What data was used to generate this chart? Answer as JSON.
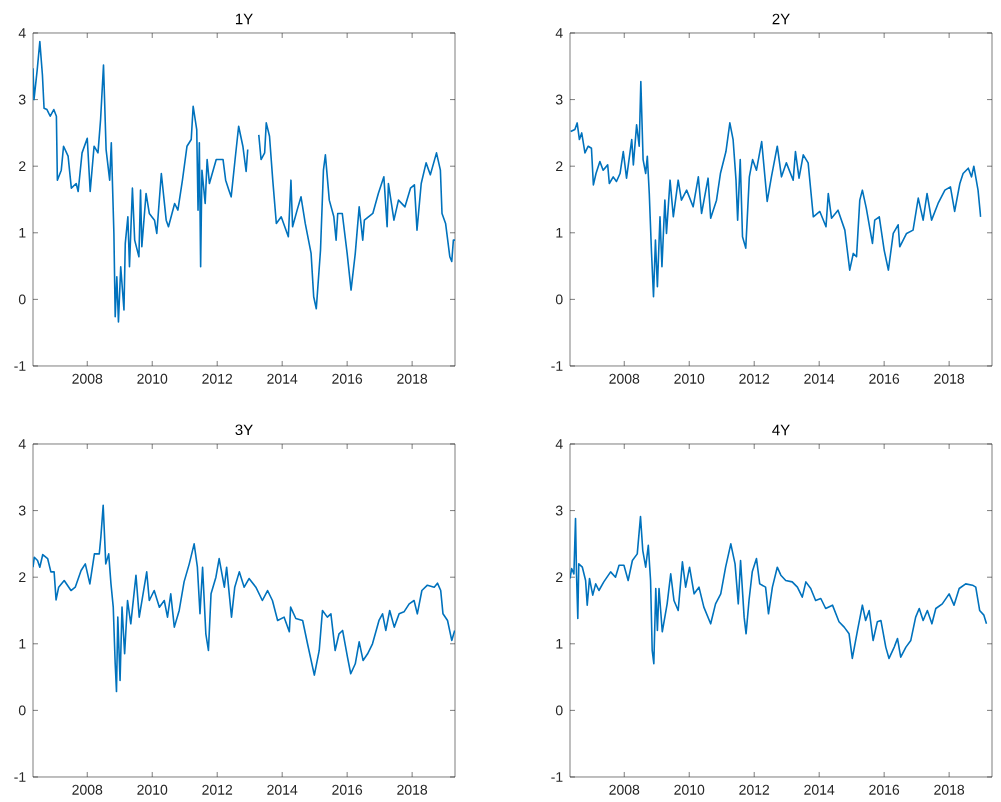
{
  "chart_data": [
    {
      "type": "line",
      "title": "1Y",
      "color": "#0072bd",
      "xlim": [
        2006.33,
        2019.32
      ],
      "ylim": [
        -1,
        4
      ],
      "xticks": [
        2008,
        2010,
        2012,
        2014,
        2016,
        2018
      ],
      "yticks": [
        -1,
        0,
        1,
        2,
        3,
        4
      ],
      "x": [
        2006.33,
        2006.36,
        2006.46,
        2006.54,
        2006.62,
        2006.67,
        2006.76,
        2006.86,
        2006.97,
        2007.05,
        2007.08,
        2007.2,
        2007.27,
        2007.41,
        2007.51,
        2007.66,
        2007.72,
        2007.84,
        2008.0,
        2008.09,
        2008.21,
        2008.33,
        2008.41,
        2008.5,
        2008.58,
        2008.69,
        2008.74,
        2008.82,
        2008.86,
        2008.91,
        2008.96,
        2009.03,
        2009.13,
        2009.17,
        2009.25,
        2009.3,
        2009.39,
        2009.46,
        2009.59,
        2009.64,
        2009.68,
        2009.81,
        2009.91,
        2010.07,
        2010.14,
        2010.28,
        2010.43,
        2010.5,
        2010.69,
        2010.79,
        2010.93,
        2011.07,
        2011.2,
        2011.26,
        2011.37,
        2011.41,
        2011.45,
        2011.49,
        2011.53,
        2011.63,
        2011.69,
        2011.76,
        2011.97,
        2012.18,
        2012.26,
        2012.36,
        2012.43,
        2012.55,
        2012.66,
        2012.79,
        2012.89,
        2012.94,
        2013.1,
        2013.28,
        2013.35,
        2013.46,
        2013.51,
        2013.61,
        2013.71,
        2013.82,
        2013.97,
        2014.19,
        2014.27,
        2014.32,
        2014.46,
        2014.58,
        2014.71,
        2014.89,
        2014.97,
        2015.05,
        2015.18,
        2015.27,
        2015.33,
        2015.45,
        2015.59,
        2015.66,
        2015.71,
        2015.85,
        2016.0,
        2016.12,
        2016.25,
        2016.37,
        2016.48,
        2016.53,
        2016.79,
        2016.96,
        2017.13,
        2017.23,
        2017.27,
        2017.44,
        2017.58,
        2017.78,
        2017.95,
        2018.07,
        2018.15,
        2018.28,
        2018.43,
        2018.56,
        2018.75,
        2018.87,
        2018.92,
        2019.03,
        2019.16,
        2019.22,
        2019.27,
        2019.32
      ],
      "values": [
        3.47,
        3.0,
        3.45,
        3.87,
        3.37,
        2.87,
        2.85,
        2.75,
        2.85,
        2.75,
        1.79,
        1.94,
        2.3,
        2.15,
        1.67,
        1.74,
        1.62,
        2.2,
        2.42,
        1.62,
        2.3,
        2.2,
        2.7,
        3.52,
        2.25,
        1.79,
        2.35,
        0.99,
        -0.26,
        0.34,
        -0.34,
        0.49,
        -0.16,
        0.84,
        1.24,
        0.49,
        1.67,
        0.89,
        0.64,
        1.64,
        0.79,
        1.59,
        1.29,
        1.19,
        0.99,
        1.89,
        1.19,
        1.09,
        1.44,
        1.34,
        1.79,
        2.3,
        2.4,
        2.9,
        2.55,
        1.34,
        2.35,
        0.49,
        1.94,
        1.44,
        2.1,
        1.74,
        2.1,
        2.1,
        1.79,
        1.64,
        1.54,
        2.1,
        2.6,
        2.3,
        1.92,
        2.25,
        null,
        2.47,
        2.1,
        2.2,
        2.65,
        2.45,
        1.79,
        1.14,
        1.24,
        0.94,
        1.79,
        1.09,
        1.34,
        1.54,
        1.14,
        0.69,
        0.04,
        -0.14,
        0.74,
        1.94,
        2.17,
        1.49,
        1.24,
        0.89,
        1.29,
        1.29,
        0.69,
        0.14,
        0.69,
        1.39,
        0.89,
        1.19,
        1.29,
        1.59,
        1.84,
        1.09,
        1.74,
        1.19,
        1.49,
        1.39,
        1.67,
        1.72,
        1.04,
        1.74,
        2.05,
        1.87,
        2.2,
        1.94,
        1.29,
        1.14,
        0.64,
        0.57,
        0.89,
        0.89
      ]
    },
    {
      "type": "line",
      "title": "2Y",
      "color": "#0072bd",
      "xlim": [
        2006.33,
        2019.32
      ],
      "ylim": [
        -1,
        4
      ],
      "xticks": [
        2008,
        2010,
        2012,
        2014,
        2016,
        2018
      ],
      "yticks": [
        -1,
        0,
        1,
        2,
        3,
        4
      ],
      "x": [
        2006.35,
        2006.48,
        2006.55,
        2006.62,
        2006.69,
        2006.79,
        2006.89,
        2006.99,
        2007.05,
        2007.13,
        2007.25,
        2007.35,
        2007.49,
        2007.54,
        2007.66,
        2007.76,
        2007.87,
        2007.97,
        2008.07,
        2008.23,
        2008.28,
        2008.38,
        2008.46,
        2008.51,
        2008.58,
        2008.66,
        2008.71,
        2008.77,
        2008.84,
        2008.9,
        2008.96,
        2009.02,
        2009.1,
        2009.16,
        2009.25,
        2009.3,
        2009.41,
        2009.51,
        2009.66,
        2009.76,
        2009.92,
        2010.12,
        2010.28,
        2010.38,
        2010.58,
        2010.66,
        2010.84,
        2010.96,
        2011.13,
        2011.25,
        2011.35,
        2011.44,
        2011.49,
        2011.57,
        2011.64,
        2011.74,
        2011.85,
        2011.95,
        2012.07,
        2012.23,
        2012.4,
        2012.53,
        2012.71,
        2012.84,
        2012.99,
        2013.2,
        2013.27,
        2013.38,
        2013.51,
        2013.66,
        2013.82,
        2014.02,
        2014.21,
        2014.28,
        2014.38,
        2014.58,
        2014.79,
        2014.94,
        2015.05,
        2015.15,
        2015.25,
        2015.33,
        2015.45,
        2015.64,
        2015.71,
        2015.85,
        2016.0,
        2016.13,
        2016.28,
        2016.43,
        2016.48,
        2016.69,
        2016.89,
        2017.05,
        2017.2,
        2017.32,
        2017.46,
        2017.66,
        2017.87,
        2018.04,
        2018.17,
        2018.33,
        2018.43,
        2018.59,
        2018.69,
        2018.76,
        2018.89,
        2018.97
      ],
      "values": [
        2.52,
        2.55,
        2.65,
        2.4,
        2.5,
        2.2,
        2.3,
        2.27,
        1.72,
        1.89,
        2.07,
        1.94,
        2.02,
        1.74,
        1.84,
        1.77,
        1.89,
        2.22,
        1.82,
        2.4,
        2.02,
        2.62,
        2.3,
        3.27,
        2.1,
        1.89,
        2.15,
        1.59,
        0.69,
        0.04,
        0.89,
        0.19,
        1.24,
        0.49,
        1.49,
        0.99,
        1.79,
        1.24,
        1.79,
        1.49,
        1.64,
        1.39,
        1.84,
        1.29,
        1.82,
        1.22,
        1.49,
        1.89,
        2.22,
        2.65,
        2.4,
        1.79,
        1.19,
        2.1,
        0.94,
        0.77,
        1.84,
        2.1,
        1.94,
        2.37,
        1.47,
        1.84,
        2.3,
        1.84,
        2.05,
        1.79,
        2.22,
        1.82,
        2.17,
        2.05,
        1.24,
        1.32,
        1.09,
        1.59,
        1.22,
        1.34,
        1.04,
        0.44,
        0.69,
        0.64,
        1.49,
        1.64,
        1.37,
        0.84,
        1.19,
        1.24,
        0.74,
        0.44,
        0.99,
        1.12,
        0.79,
        0.99,
        1.04,
        1.52,
        1.19,
        1.59,
        1.19,
        1.44,
        1.64,
        1.69,
        1.32,
        1.74,
        1.89,
        1.97,
        1.84,
        2.0,
        1.64,
        1.24
      ]
    },
    {
      "type": "line",
      "title": "3Y",
      "color": "#0072bd",
      "xlim": [
        2006.33,
        2019.32
      ],
      "ylim": [
        -1,
        4
      ],
      "xticks": [
        2008,
        2010,
        2012,
        2014,
        2016,
        2018
      ],
      "yticks": [
        -1,
        0,
        1,
        2,
        3,
        4
      ],
      "x": [
        2006.33,
        2006.37,
        2006.47,
        2006.54,
        2006.63,
        2006.78,
        2006.88,
        2006.98,
        2007.04,
        2007.12,
        2007.29,
        2007.5,
        2007.63,
        2007.81,
        2007.94,
        2008.08,
        2008.22,
        2008.37,
        2008.42,
        2008.49,
        2008.57,
        2008.66,
        2008.73,
        2008.8,
        2008.86,
        2008.9,
        2008.94,
        2009.01,
        2009.07,
        2009.15,
        2009.24,
        2009.34,
        2009.5,
        2009.6,
        2009.83,
        2009.91,
        2010.06,
        2010.22,
        2010.37,
        2010.47,
        2010.57,
        2010.68,
        2010.83,
        2010.98,
        2011.14,
        2011.29,
        2011.39,
        2011.47,
        2011.55,
        2011.65,
        2011.73,
        2011.81,
        2011.96,
        2012.06,
        2012.22,
        2012.29,
        2012.44,
        2012.54,
        2012.68,
        2012.83,
        2012.98,
        2013.19,
        2013.39,
        2013.55,
        2013.7,
        2013.86,
        2014.06,
        2014.22,
        2014.26,
        2014.42,
        2014.63,
        2014.78,
        2014.99,
        2015.14,
        2015.24,
        2015.39,
        2015.5,
        2015.63,
        2015.75,
        2015.86,
        2016.01,
        2016.11,
        2016.25,
        2016.37,
        2016.49,
        2016.63,
        2016.78,
        2016.98,
        2017.09,
        2017.19,
        2017.31,
        2017.45,
        2017.6,
        2017.75,
        2017.91,
        2018.06,
        2018.16,
        2018.3,
        2018.47,
        2018.68,
        2018.78,
        2018.88,
        2018.95,
        2019.09,
        2019.22,
        2019.31
      ],
      "values": [
        2.15,
        2.3,
        2.25,
        2.15,
        2.34,
        2.28,
        2.08,
        2.08,
        1.66,
        1.85,
        1.95,
        1.8,
        1.85,
        2.1,
        2.2,
        1.9,
        2.35,
        2.35,
        2.61,
        3.08,
        2.2,
        2.35,
        1.9,
        1.55,
        0.7,
        0.28,
        1.4,
        0.45,
        1.55,
        0.85,
        1.65,
        1.3,
        2.03,
        1.4,
        2.08,
        1.65,
        1.8,
        1.55,
        1.65,
        1.4,
        1.75,
        1.25,
        1.5,
        1.93,
        2.2,
        2.5,
        2.15,
        1.45,
        2.15,
        1.15,
        0.9,
        1.75,
        2.0,
        2.28,
        1.85,
        2.15,
        1.4,
        1.85,
        2.08,
        1.85,
        1.98,
        1.85,
        1.65,
        1.8,
        1.65,
        1.35,
        1.4,
        1.18,
        1.55,
        1.38,
        1.35,
        1.0,
        0.53,
        0.9,
        1.5,
        1.4,
        1.45,
        0.9,
        1.15,
        1.2,
        0.8,
        0.55,
        0.7,
        1.03,
        0.75,
        0.85,
        1.0,
        1.35,
        1.45,
        1.2,
        1.5,
        1.25,
        1.45,
        1.48,
        1.6,
        1.65,
        1.45,
        1.8,
        1.88,
        1.85,
        1.91,
        1.8,
        1.45,
        1.35,
        1.05,
        1.2
      ]
    },
    {
      "type": "line",
      "title": "4Y",
      "color": "#0072bd",
      "xlim": [
        2006.33,
        2019.32
      ],
      "ylim": [
        -1,
        4
      ],
      "xticks": [
        2008,
        2010,
        2012,
        2014,
        2016,
        2018
      ],
      "yticks": [
        -1,
        0,
        1,
        2,
        3,
        4
      ],
      "x": [
        2006.33,
        2006.38,
        2006.45,
        2006.5,
        2006.53,
        2006.57,
        2006.6,
        2006.71,
        2006.81,
        2006.86,
        2006.93,
        2007.03,
        2007.12,
        2007.22,
        2007.37,
        2007.58,
        2007.73,
        2007.84,
        2007.99,
        2008.12,
        2008.25,
        2008.4,
        2008.5,
        2008.57,
        2008.66,
        2008.74,
        2008.81,
        2008.86,
        2008.91,
        2008.97,
        2009.02,
        2009.07,
        2009.17,
        2009.32,
        2009.43,
        2009.53,
        2009.66,
        2009.79,
        2009.89,
        2010.01,
        2010.15,
        2010.3,
        2010.45,
        2010.66,
        2010.81,
        2010.97,
        2011.12,
        2011.28,
        2011.41,
        2011.51,
        2011.58,
        2011.69,
        2011.75,
        2011.84,
        2011.94,
        2012.07,
        2012.17,
        2012.35,
        2012.44,
        2012.56,
        2012.71,
        2012.82,
        2012.97,
        2013.17,
        2013.33,
        2013.48,
        2013.59,
        2013.74,
        2013.89,
        2014.05,
        2014.2,
        2014.41,
        2014.61,
        2014.77,
        2014.92,
        2015.02,
        2015.18,
        2015.33,
        2015.43,
        2015.54,
        2015.66,
        2015.79,
        2015.9,
        2016.05,
        2016.15,
        2016.31,
        2016.41,
        2016.51,
        2016.67,
        2016.82,
        2016.97,
        2017.08,
        2017.2,
        2017.33,
        2017.47,
        2017.59,
        2017.79,
        2018.0,
        2018.15,
        2018.31,
        2018.51,
        2018.72,
        2018.82,
        2018.94,
        2019.07,
        2019.15
      ],
      "values": [
        1.98,
        2.13,
        2.05,
        2.88,
        2.05,
        1.38,
        2.2,
        2.15,
        1.95,
        1.58,
        1.98,
        1.73,
        1.9,
        1.8,
        1.93,
        2.08,
        2.0,
        2.18,
        2.18,
        1.95,
        2.25,
        2.35,
        2.91,
        2.4,
        2.15,
        2.48,
        1.95,
        0.9,
        0.7,
        1.83,
        1.2,
        1.83,
        1.18,
        1.6,
        2.05,
        1.65,
        1.5,
        2.23,
        1.85,
        2.15,
        1.75,
        1.85,
        1.55,
        1.3,
        1.6,
        1.75,
        2.15,
        2.5,
        2.2,
        1.6,
        2.25,
        1.4,
        1.15,
        1.65,
        2.08,
        2.28,
        1.9,
        1.85,
        1.45,
        1.85,
        2.15,
        2.03,
        1.95,
        1.93,
        1.85,
        1.7,
        1.93,
        1.83,
        1.65,
        1.68,
        1.53,
        1.58,
        1.33,
        1.25,
        1.15,
        0.78,
        1.2,
        1.58,
        1.35,
        1.5,
        1.05,
        1.33,
        1.35,
        0.95,
        0.78,
        0.95,
        1.08,
        0.8,
        0.95,
        1.05,
        1.4,
        1.53,
        1.35,
        1.5,
        1.3,
        1.53,
        1.6,
        1.75,
        1.58,
        1.83,
        1.9,
        1.88,
        1.85,
        1.5,
        1.43,
        1.3
      ]
    }
  ]
}
